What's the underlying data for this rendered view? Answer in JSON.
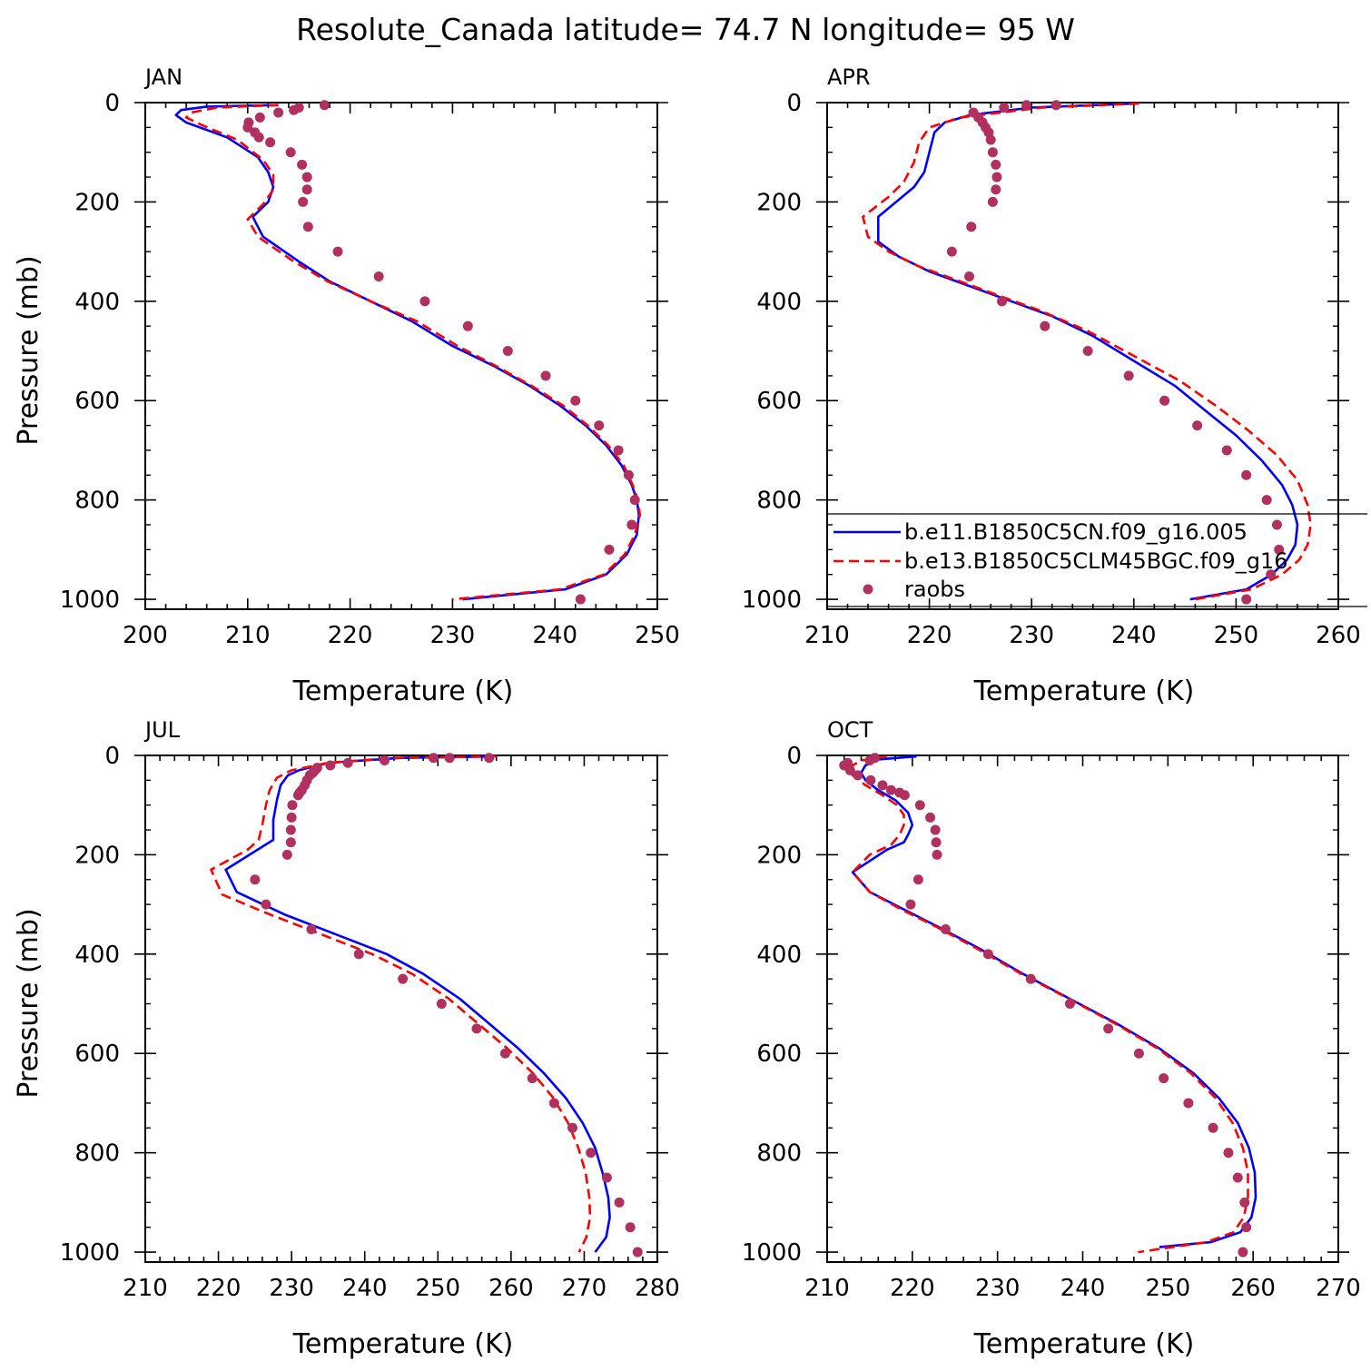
{
  "figure": {
    "title": "Resolute_Canada  latitude= 74.7 N longitude= 95 W"
  },
  "colors": {
    "model1": "#0000ff",
    "model2": "#ff0000",
    "obs": "#b03060",
    "axis": "#000000"
  },
  "legend": {
    "entries": [
      {
        "label": "b.e11.B1850C5CN.f09_g16.005",
        "style": "solid",
        "color": "#0000ff"
      },
      {
        "label": "b.e13.B1850C5CLM45BGC.f09_g16",
        "style": "dashed",
        "color": "#ff0000"
      },
      {
        "label": "raobs",
        "style": "marker",
        "color": "#b03060"
      }
    ]
  },
  "chart_data": [
    {
      "type": "line",
      "panel": "JAN",
      "title": "JAN",
      "xlabel": "Temperature (K)",
      "ylabel": "Pressure (mb)",
      "xlim": [
        200,
        250
      ],
      "ylim": [
        1020,
        0
      ],
      "xticks": [
        200,
        210,
        220,
        230,
        240,
        250
      ],
      "yticks": [
        0,
        200,
        400,
        600,
        800,
        1000
      ],
      "series": [
        {
          "name": "b.e11.B1850C5CN.f09_g16.005",
          "x": [
            213,
            206,
            203.5,
            203,
            204,
            208,
            211,
            212,
            212.5,
            212,
            210.5,
            211.5,
            215,
            218,
            222,
            226,
            230,
            234,
            237.5,
            240.5,
            243,
            245,
            246.5,
            247.5,
            248,
            248.2,
            248,
            247,
            245,
            241,
            231
          ],
          "y": [
            5,
            8,
            15,
            25,
            40,
            70,
            110,
            140,
            170,
            200,
            230,
            270,
            320,
            360,
            400,
            440,
            490,
            530,
            570,
            610,
            650,
            690,
            730,
            770,
            800,
            830,
            870,
            910,
            950,
            980,
            1000
          ]
        },
        {
          "name": "b.e13.B1850C5CLM45BGC.f09_g16",
          "x": [
            213,
            207,
            204.5,
            204,
            205.5,
            209,
            211.5,
            212.5,
            212.5,
            211.5,
            210,
            211,
            214.5,
            217.8,
            222,
            226.5,
            230.5,
            234.2,
            237.7,
            240.8,
            243.2,
            245.2,
            246.7,
            247.6,
            248.1,
            248.3,
            247.8,
            246.8,
            244.8,
            240.5,
            230
          ],
          "y": [
            5,
            10,
            20,
            30,
            45,
            75,
            115,
            145,
            175,
            205,
            235,
            270,
            320,
            360,
            400,
            440,
            490,
            530,
            570,
            610,
            650,
            690,
            730,
            770,
            800,
            830,
            870,
            910,
            950,
            980,
            1000
          ]
        },
        {
          "name": "raobs",
          "marker": true,
          "x": [
            217.5,
            215,
            214.5,
            213,
            211.2,
            210.1,
            210,
            210.7,
            211.1,
            212.2,
            214.2,
            215.3,
            215.8,
            215.8,
            215.4,
            215.9,
            218.8,
            222.8,
            227.3,
            231.5,
            235.4,
            239.1,
            242,
            244.3,
            246.2,
            247.2,
            247.8,
            247.5,
            245.3,
            242.5
          ],
          "y": [
            5,
            10,
            15,
            20,
            30,
            40,
            50,
            60,
            70,
            80,
            100,
            125,
            150,
            175,
            200,
            250,
            300,
            350,
            400,
            450,
            500,
            550,
            600,
            650,
            700,
            750,
            800,
            850,
            900,
            1000
          ]
        }
      ]
    },
    {
      "type": "line",
      "panel": "APR",
      "title": "APR",
      "xlabel": "Temperature (K)",
      "ylabel": "Pressure (mb)",
      "xlim": [
        210,
        260
      ],
      "ylim": [
        1020,
        0
      ],
      "xticks": [
        210,
        220,
        230,
        240,
        250,
        260
      ],
      "yticks": [
        0,
        200,
        400,
        600,
        800,
        1000
      ],
      "series": [
        {
          "name": "b.e11.B1850C5CN.f09_g16.005",
          "x": [
            240,
            230,
            224,
            221.5,
            220.5,
            220,
            219.5,
            218.5,
            215,
            215,
            217,
            220,
            224,
            228,
            232,
            236,
            240,
            244,
            247,
            250,
            252.5,
            254.5,
            255.5,
            256,
            255.8,
            255,
            253.5,
            251,
            245.5
          ],
          "y": [
            2,
            10,
            25,
            40,
            60,
            100,
            140,
            170,
            230,
            280,
            310,
            340,
            370,
            400,
            430,
            470,
            520,
            570,
            620,
            670,
            720,
            770,
            810,
            850,
            890,
            920,
            950,
            980,
            1000
          ]
        },
        {
          "name": "b.e13.B1850C5CLM45BGC.f09_g16",
          "x": [
            240.5,
            231,
            223,
            220,
            219,
            218.5,
            217.5,
            216,
            213.5,
            214,
            216,
            219,
            223,
            227,
            231,
            235.5,
            240,
            244.5,
            248,
            251.2,
            254,
            256,
            257,
            257.3,
            257,
            256.2,
            254.5,
            251.5,
            246
          ],
          "y": [
            2,
            10,
            30,
            50,
            80,
            120,
            160,
            190,
            230,
            270,
            300,
            330,
            360,
            390,
            420,
            460,
            510,
            560,
            610,
            660,
            710,
            760,
            810,
            850,
            890,
            920,
            950,
            980,
            1000
          ]
        },
        {
          "name": "raobs",
          "marker": true,
          "x": [
            232.4,
            229.5,
            227.3,
            224.3,
            224.8,
            225.2,
            225.5,
            225.8,
            226,
            226.2,
            226.5,
            226.6,
            226.5,
            226.2,
            224.1,
            222.2,
            223.9,
            227.1,
            231.3,
            235.5,
            239.5,
            243,
            246.2,
            249.1,
            251,
            253,
            254,
            254.2,
            253.4,
            251
          ],
          "y": [
            5,
            5,
            10,
            20,
            30,
            40,
            50,
            60,
            75,
            100,
            125,
            150,
            175,
            200,
            250,
            300,
            350,
            400,
            450,
            500,
            550,
            600,
            650,
            700,
            750,
            800,
            850,
            900,
            950,
            1000
          ]
        }
      ]
    },
    {
      "type": "line",
      "panel": "JUL",
      "title": "JUL",
      "xlabel": "Temperature (K)",
      "ylabel": "Pressure (mb)",
      "xlim": [
        210,
        280
      ],
      "ylim": [
        1020,
        0
      ],
      "xticks": [
        210,
        220,
        230,
        240,
        250,
        260,
        270,
        280
      ],
      "yticks": [
        0,
        200,
        400,
        600,
        800,
        1000
      ],
      "series": [
        {
          "name": "b.e11.B1850C5CN.f09_g16.005",
          "x": [
            258,
            245,
            235,
            231,
            229.5,
            228.5,
            228,
            227.5,
            227.5,
            227.5,
            221,
            222.5,
            229,
            236,
            243,
            248,
            253,
            257,
            261,
            264.5,
            267.5,
            269.8,
            271.5,
            272.5,
            273.3,
            273.5,
            273,
            271.5
          ],
          "y": [
            2,
            5,
            15,
            30,
            40,
            60,
            90,
            130,
            160,
            170,
            230,
            275,
            320,
            360,
            400,
            440,
            490,
            540,
            590,
            640,
            690,
            740,
            790,
            840,
            890,
            930,
            970,
            1000
          ]
        },
        {
          "name": "b.e13.B1850C5CLM45BGC.f09_g16",
          "x": [
            258,
            244,
            235,
            230,
            228,
            227,
            226.5,
            226,
            225.5,
            224,
            219,
            220.5,
            227,
            234,
            241,
            246.5,
            251.5,
            255.5,
            259.5,
            263,
            265.8,
            267.8,
            269.2,
            270.2,
            270.7,
            270.8,
            270.3,
            269.3
          ],
          "y": [
            2,
            5,
            15,
            30,
            45,
            70,
            100,
            140,
            170,
            190,
            230,
            280,
            320,
            360,
            400,
            440,
            490,
            540,
            590,
            640,
            690,
            740,
            790,
            840,
            890,
            930,
            970,
            1000
          ]
        },
        {
          "name": "raobs",
          "marker": true,
          "x": [
            257,
            251.6,
            249.4,
            242.7,
            237.7,
            235.3,
            233.5,
            233.2,
            232.9,
            232.5,
            232.1,
            231.8,
            231.4,
            231.1,
            230.9,
            230.1,
            230,
            229.9,
            229.9,
            229.4,
            225,
            226.5,
            232.7,
            239.2,
            245.2,
            250.5,
            255.3,
            259.2,
            262.9,
            265.9,
            268.4,
            270.9,
            273.1,
            274.8,
            276.3,
            277.3
          ],
          "y": [
            5,
            5,
            5,
            10,
            15,
            20,
            25,
            30,
            35,
            40,
            50,
            60,
            70,
            75,
            80,
            100,
            125,
            150,
            175,
            200,
            250,
            300,
            350,
            400,
            450,
            500,
            550,
            600,
            650,
            700,
            750,
            800,
            850,
            900,
            950,
            1000
          ]
        }
      ]
    },
    {
      "type": "line",
      "panel": "OCT",
      "title": "OCT",
      "xlabel": "Temperature (K)",
      "ylabel": "Pressure (mb)",
      "xlim": [
        210,
        270
      ],
      "ylim": [
        1020,
        0
      ],
      "xticks": [
        210,
        220,
        230,
        240,
        250,
        260,
        270
      ],
      "yticks": [
        0,
        200,
        400,
        600,
        800,
        1000
      ],
      "series": [
        {
          "name": "b.e11.B1850C5CN.f09_g16.005",
          "x": [
            220.5,
            216,
            214.5,
            214,
            214.5,
            216,
            218,
            219.5,
            220,
            219.5,
            219,
            217,
            213,
            215,
            219,
            223,
            228,
            233,
            238.5,
            244,
            249,
            253,
            256,
            258.2,
            259.5,
            260.2,
            260.3,
            259.8,
            258.5,
            255,
            249
          ],
          "y": [
            2,
            8,
            20,
            35,
            50,
            70,
            90,
            115,
            140,
            160,
            175,
            190,
            235,
            275,
            310,
            345,
            390,
            440,
            490,
            540,
            590,
            640,
            690,
            740,
            790,
            840,
            890,
            930,
            960,
            980,
            990
          ]
        },
        {
          "name": "b.e13.B1850C5CLM45BGC.f09_g16",
          "x": [
            217,
            214,
            212.5,
            213,
            214.5,
            216.5,
            218.2,
            219,
            219,
            218.5,
            217.5,
            215,
            213,
            215,
            218.7,
            222.8,
            227.7,
            232.8,
            238.4,
            243.8,
            248.8,
            252.7,
            255.6,
            257.6,
            258.8,
            259.4,
            259.4,
            258.9,
            257.7,
            254.5,
            246.5
          ],
          "y": [
            2,
            10,
            25,
            40,
            60,
            80,
            100,
            120,
            140,
            160,
            180,
            200,
            235,
            275,
            310,
            345,
            390,
            440,
            490,
            540,
            590,
            640,
            690,
            740,
            790,
            840,
            890,
            930,
            960,
            980,
            1000
          ]
        },
        {
          "name": "raobs",
          "marker": true,
          "x": [
            215.6,
            215,
            212.4,
            212,
            212.7,
            213.6,
            215.1,
            216.5,
            217.5,
            218.5,
            219.1,
            220.9,
            222.1,
            222.7,
            222.8,
            222.9,
            220.7,
            219.8,
            223.9,
            228.9,
            233.9,
            238.5,
            243,
            246.6,
            249.5,
            252.4,
            255.3,
            257.1,
            258.2,
            259,
            259.2,
            258.8
          ],
          "y": [
            5,
            10,
            15,
            20,
            30,
            40,
            50,
            60,
            70,
            75,
            80,
            100,
            125,
            150,
            175,
            200,
            250,
            300,
            350,
            400,
            450,
            500,
            550,
            600,
            650,
            700,
            750,
            800,
            850,
            900,
            950,
            1000
          ]
        }
      ]
    }
  ]
}
